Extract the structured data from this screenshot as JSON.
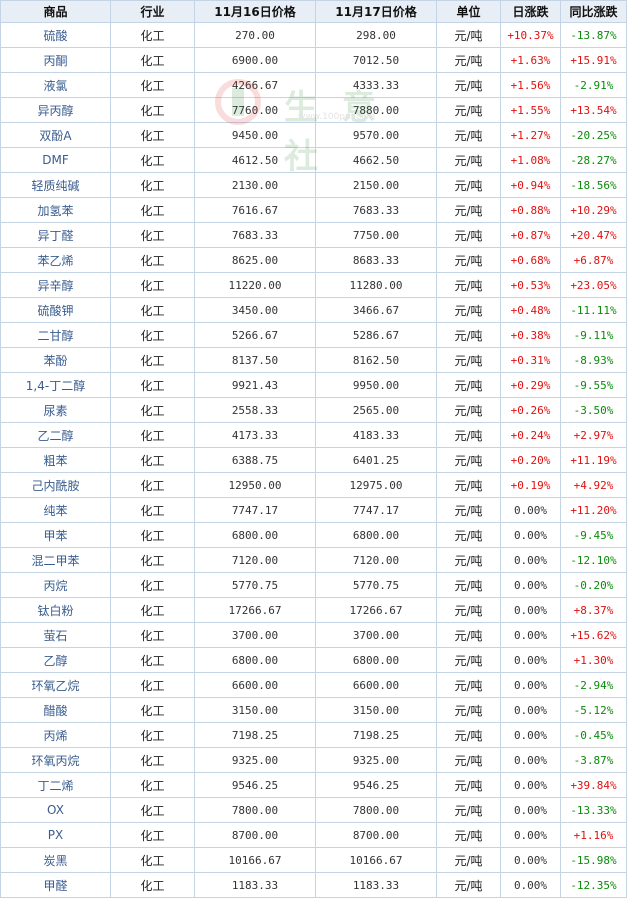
{
  "header": {
    "name": "商品",
    "industry": "行业",
    "price_16": "11月16日价格",
    "price_17": "11月17日价格",
    "unit": "单位",
    "daily_change": "日涨跌",
    "yoy_change": "同比涨跌"
  },
  "watermark": {
    "text": "生 意 社",
    "url": "www.100ppi.com"
  },
  "rows": [
    {
      "name": "硫酸",
      "industry": "化工",
      "p16": "270.00",
      "p17": "298.00",
      "unit": "元/吨",
      "day": "+10.37%",
      "yoy": "-13.87%"
    },
    {
      "name": "丙酮",
      "industry": "化工",
      "p16": "6900.00",
      "p17": "7012.50",
      "unit": "元/吨",
      "day": "+1.63%",
      "yoy": "+15.91%"
    },
    {
      "name": "液氯",
      "industry": "化工",
      "p16": "4266.67",
      "p17": "4333.33",
      "unit": "元/吨",
      "day": "+1.56%",
      "yoy": "-2.91%"
    },
    {
      "name": "异丙醇",
      "industry": "化工",
      "p16": "7760.00",
      "p17": "7880.00",
      "unit": "元/吨",
      "day": "+1.55%",
      "yoy": "+13.54%"
    },
    {
      "name": "双酚A",
      "industry": "化工",
      "p16": "9450.00",
      "p17": "9570.00",
      "unit": "元/吨",
      "day": "+1.27%",
      "yoy": "-20.25%"
    },
    {
      "name": "DMF",
      "industry": "化工",
      "p16": "4612.50",
      "p17": "4662.50",
      "unit": "元/吨",
      "day": "+1.08%",
      "yoy": "-28.27%"
    },
    {
      "name": "轻质纯碱",
      "industry": "化工",
      "p16": "2130.00",
      "p17": "2150.00",
      "unit": "元/吨",
      "day": "+0.94%",
      "yoy": "-18.56%"
    },
    {
      "name": "加氢苯",
      "industry": "化工",
      "p16": "7616.67",
      "p17": "7683.33",
      "unit": "元/吨",
      "day": "+0.88%",
      "yoy": "+10.29%"
    },
    {
      "name": "异丁醛",
      "industry": "化工",
      "p16": "7683.33",
      "p17": "7750.00",
      "unit": "元/吨",
      "day": "+0.87%",
      "yoy": "+20.47%"
    },
    {
      "name": "苯乙烯",
      "industry": "化工",
      "p16": "8625.00",
      "p17": "8683.33",
      "unit": "元/吨",
      "day": "+0.68%",
      "yoy": "+6.87%"
    },
    {
      "name": "异辛醇",
      "industry": "化工",
      "p16": "11220.00",
      "p17": "11280.00",
      "unit": "元/吨",
      "day": "+0.53%",
      "yoy": "+23.05%"
    },
    {
      "name": "硫酸钾",
      "industry": "化工",
      "p16": "3450.00",
      "p17": "3466.67",
      "unit": "元/吨",
      "day": "+0.48%",
      "yoy": "-11.11%"
    },
    {
      "name": "二甘醇",
      "industry": "化工",
      "p16": "5266.67",
      "p17": "5286.67",
      "unit": "元/吨",
      "day": "+0.38%",
      "yoy": "-9.11%"
    },
    {
      "name": "苯酚",
      "industry": "化工",
      "p16": "8137.50",
      "p17": "8162.50",
      "unit": "元/吨",
      "day": "+0.31%",
      "yoy": "-8.93%"
    },
    {
      "name": "1,4-丁二醇",
      "industry": "化工",
      "p16": "9921.43",
      "p17": "9950.00",
      "unit": "元/吨",
      "day": "+0.29%",
      "yoy": "-9.55%"
    },
    {
      "name": "尿素",
      "industry": "化工",
      "p16": "2558.33",
      "p17": "2565.00",
      "unit": "元/吨",
      "day": "+0.26%",
      "yoy": "-3.50%"
    },
    {
      "name": "乙二醇",
      "industry": "化工",
      "p16": "4173.33",
      "p17": "4183.33",
      "unit": "元/吨",
      "day": "+0.24%",
      "yoy": "+2.97%"
    },
    {
      "name": "粗苯",
      "industry": "化工",
      "p16": "6388.75",
      "p17": "6401.25",
      "unit": "元/吨",
      "day": "+0.20%",
      "yoy": "+11.19%"
    },
    {
      "name": "己内酰胺",
      "industry": "化工",
      "p16": "12950.00",
      "p17": "12975.00",
      "unit": "元/吨",
      "day": "+0.19%",
      "yoy": "+4.92%"
    },
    {
      "name": "纯苯",
      "industry": "化工",
      "p16": "7747.17",
      "p17": "7747.17",
      "unit": "元/吨",
      "day": "0.00%",
      "yoy": "+11.20%"
    },
    {
      "name": "甲苯",
      "industry": "化工",
      "p16": "6800.00",
      "p17": "6800.00",
      "unit": "元/吨",
      "day": "0.00%",
      "yoy": "-9.45%"
    },
    {
      "name": "混二甲苯",
      "industry": "化工",
      "p16": "7120.00",
      "p17": "7120.00",
      "unit": "元/吨",
      "day": "0.00%",
      "yoy": "-12.10%"
    },
    {
      "name": "丙烷",
      "industry": "化工",
      "p16": "5770.75",
      "p17": "5770.75",
      "unit": "元/吨",
      "day": "0.00%",
      "yoy": "-0.20%"
    },
    {
      "name": "钛白粉",
      "industry": "化工",
      "p16": "17266.67",
      "p17": "17266.67",
      "unit": "元/吨",
      "day": "0.00%",
      "yoy": "+8.37%"
    },
    {
      "name": "萤石",
      "industry": "化工",
      "p16": "3700.00",
      "p17": "3700.00",
      "unit": "元/吨",
      "day": "0.00%",
      "yoy": "+15.62%"
    },
    {
      "name": "乙醇",
      "industry": "化工",
      "p16": "6800.00",
      "p17": "6800.00",
      "unit": "元/吨",
      "day": "0.00%",
      "yoy": "+1.30%"
    },
    {
      "name": "环氧乙烷",
      "industry": "化工",
      "p16": "6600.00",
      "p17": "6600.00",
      "unit": "元/吨",
      "day": "0.00%",
      "yoy": "-2.94%"
    },
    {
      "name": "醋酸",
      "industry": "化工",
      "p16": "3150.00",
      "p17": "3150.00",
      "unit": "元/吨",
      "day": "0.00%",
      "yoy": "-5.12%"
    },
    {
      "name": "丙烯",
      "industry": "化工",
      "p16": "7198.25",
      "p17": "7198.25",
      "unit": "元/吨",
      "day": "0.00%",
      "yoy": "-0.45%"
    },
    {
      "name": "环氧丙烷",
      "industry": "化工",
      "p16": "9325.00",
      "p17": "9325.00",
      "unit": "元/吨",
      "day": "0.00%",
      "yoy": "-3.87%"
    },
    {
      "name": "丁二烯",
      "industry": "化工",
      "p16": "9546.25",
      "p17": "9546.25",
      "unit": "元/吨",
      "day": "0.00%",
      "yoy": "+39.84%"
    },
    {
      "name": "OX",
      "industry": "化工",
      "p16": "7800.00",
      "p17": "7800.00",
      "unit": "元/吨",
      "day": "0.00%",
      "yoy": "-13.33%"
    },
    {
      "name": "PX",
      "industry": "化工",
      "p16": "8700.00",
      "p17": "8700.00",
      "unit": "元/吨",
      "day": "0.00%",
      "yoy": "+1.16%"
    },
    {
      "name": "炭黑",
      "industry": "化工",
      "p16": "10166.67",
      "p17": "10166.67",
      "unit": "元/吨",
      "day": "0.00%",
      "yoy": "-15.98%"
    },
    {
      "name": "甲醛",
      "industry": "化工",
      "p16": "1183.33",
      "p17": "1183.33",
      "unit": "元/吨",
      "day": "0.00%",
      "yoy": "-12.35%"
    }
  ],
  "colors": {
    "up": "#e01010",
    "down": "#0a8a0a",
    "link": "#3a5d8f",
    "header_bg": "#e8eef5",
    "border": "#c5d4e4"
  }
}
